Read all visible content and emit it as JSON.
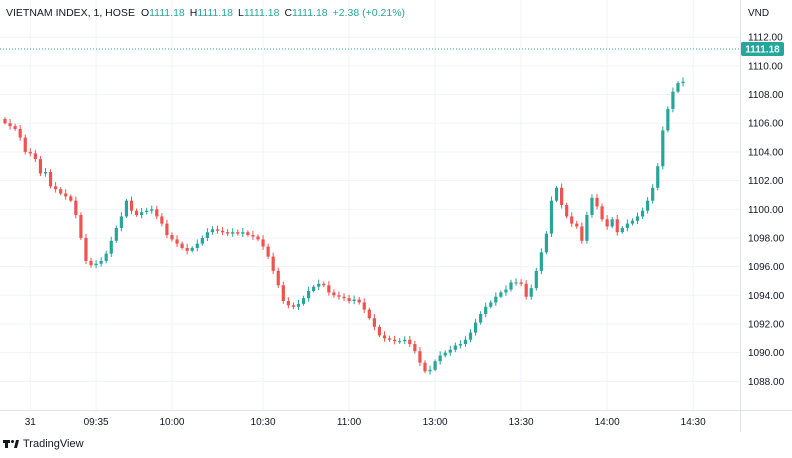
{
  "header": {
    "symbol": "VIETNAM INDEX, 1, HOSE",
    "o_label": "O",
    "o_value": "1111.18",
    "h_label": "H",
    "h_value": "1111.18",
    "l_label": "L",
    "l_value": "1111.18",
    "c_label": "C",
    "c_value": "1111.18",
    "change": "+2.38 (+0.21%)"
  },
  "axis_unit": "VND",
  "brand": "TradingView",
  "colors": {
    "up": "#26a69a",
    "down": "#ef5350",
    "grid": "#f0f3fa",
    "text": "#131722"
  },
  "chart_data": {
    "type": "candlestick",
    "title": "VIETNAM INDEX, 1, HOSE",
    "ylabel": "VND",
    "ylim": [
      1086.0,
      1113.2
    ],
    "y_ticks": [
      1088,
      1090,
      1092,
      1094,
      1096,
      1098,
      1100,
      1102,
      1104,
      1106,
      1108,
      1110,
      1112
    ],
    "y_tick_labels": [
      "1088.00",
      "1090.00",
      "1092.00",
      "1094.00",
      "1096.00",
      "1098.00",
      "1100.00",
      "1102.00",
      "1104.00",
      "1106.00",
      "1108.00",
      "1110.00",
      "1112.00"
    ],
    "x_tick_labels": [
      "31",
      "09:35",
      "10:00",
      "10:30",
      "11:00",
      "13:00",
      "13:30",
      "14:00",
      "14:30"
    ],
    "x_tick_index": [
      5,
      18,
      33,
      51,
      68,
      85,
      102,
      119,
      136
    ],
    "last_price": 1111.18,
    "last_price_label": "1111.18",
    "grid": true,
    "close": [
      1106.0,
      1105.8,
      1105.6,
      1105.0,
      1104.0,
      1103.9,
      1103.5,
      1102.5,
      1102.6,
      1101.6,
      1101.4,
      1101.1,
      1100.9,
      1100.6,
      1099.6,
      1098.0,
      1096.4,
      1096.1,
      1096.2,
      1096.4,
      1096.9,
      1097.8,
      1098.7,
      1099.5,
      1100.6,
      1099.9,
      1099.6,
      1099.8,
      1099.9,
      1100.0,
      1099.5,
      1099.0,
      1098.2,
      1097.9,
      1097.6,
      1097.3,
      1097.1,
      1097.3,
      1097.6,
      1098.0,
      1098.4,
      1098.6,
      1098.5,
      1098.4,
      1098.3,
      1098.4,
      1098.3,
      1098.4,
      1098.2,
      1098.1,
      1097.9,
      1097.4,
      1096.7,
      1095.7,
      1094.7,
      1093.6,
      1093.3,
      1093.2,
      1093.4,
      1093.8,
      1094.3,
      1094.6,
      1094.8,
      1094.7,
      1094.2,
      1094.0,
      1093.9,
      1093.8,
      1093.6,
      1093.7,
      1093.5,
      1093.0,
      1092.4,
      1091.8,
      1091.2,
      1091.0,
      1090.9,
      1090.8,
      1090.8,
      1090.9,
      1090.6,
      1090.1,
      1089.3,
      1088.7,
      1088.8,
      1089.4,
      1089.8,
      1090.0,
      1090.2,
      1090.5,
      1090.6,
      1090.9,
      1091.4,
      1092.1,
      1092.7,
      1093.2,
      1093.5,
      1093.9,
      1094.2,
      1094.4,
      1094.9,
      1094.9,
      1094.8,
      1093.9,
      1094.5,
      1095.7,
      1097.0,
      1098.3,
      1100.6,
      1101.5,
      1100.3,
      1099.5,
      1099.0,
      1098.8,
      1097.8,
      1099.6,
      1100.8,
      1100.2,
      1099.3,
      1098.8,
      1099.3,
      1098.4,
      1098.7,
      1099.0,
      1099.2,
      1099.5,
      1099.9,
      1100.6,
      1101.5,
      1103.0,
      1105.5,
      1107.0,
      1108.2,
      1108.8,
      1108.9
    ]
  }
}
